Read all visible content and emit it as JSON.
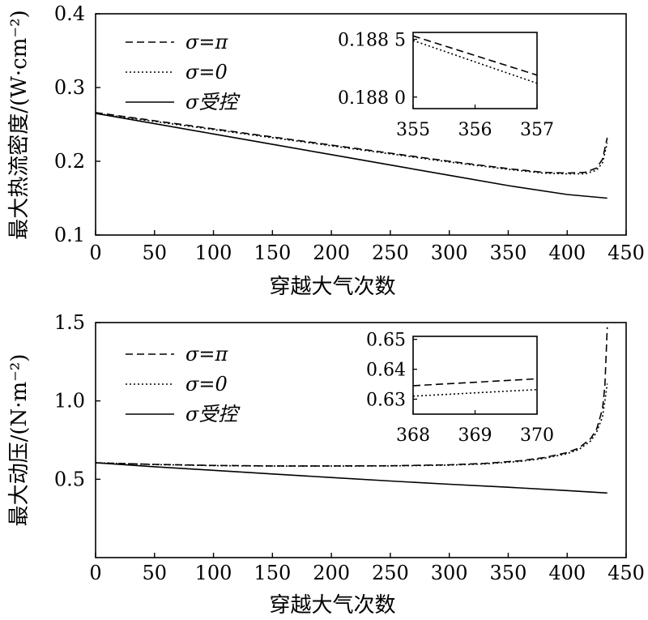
{
  "chart_data": [
    {
      "type": "line",
      "xlabel": "穿越大气次数",
      "ylabel": "最大热流密度/(W·cm⁻²)",
      "xlim": [
        0,
        450
      ],
      "ylim": [
        0.1,
        0.4
      ],
      "xticks": [
        "0",
        "50",
        "100",
        "150",
        "200",
        "250",
        "300",
        "350",
        "400",
        "450"
      ],
      "yticks": [
        "0.1",
        "0.2",
        "0.3",
        "0.4"
      ],
      "legend_position": "top-left",
      "series": [
        {
          "name": "σ=π",
          "style": "dashed",
          "x": [
            0,
            50,
            100,
            150,
            200,
            250,
            300,
            350,
            380,
            400,
            415,
            425,
            430,
            434
          ],
          "y": [
            0.266,
            0.255,
            0.244,
            0.233,
            0.222,
            0.211,
            0.2,
            0.19,
            0.185,
            0.184,
            0.185,
            0.191,
            0.203,
            0.232
          ]
        },
        {
          "name": "σ=0",
          "style": "dotted",
          "x": [
            0,
            50,
            100,
            150,
            200,
            250,
            300,
            350,
            380,
            400,
            415,
            425,
            430,
            434
          ],
          "y": [
            0.265,
            0.254,
            0.243,
            0.232,
            0.221,
            0.21,
            0.199,
            0.189,
            0.184,
            0.183,
            0.183,
            0.188,
            0.198,
            0.225
          ]
        },
        {
          "name": "σ受控",
          "style": "solid",
          "x": [
            0,
            50,
            100,
            150,
            200,
            250,
            300,
            350,
            400,
            434
          ],
          "y": [
            0.265,
            0.251,
            0.237,
            0.223,
            0.209,
            0.195,
            0.181,
            0.167,
            0.155,
            0.15
          ]
        }
      ],
      "inset": {
        "xlim": [
          355,
          357
        ],
        "ylim": [
          0.1879,
          0.18856
        ],
        "xticks": [
          355,
          356,
          357
        ],
        "xtick_labels": [
          "355",
          "356",
          "357"
        ],
        "yticks": [
          0.188,
          0.1885
        ],
        "ytick_labels": [
          "0.188 0",
          "0.188 5"
        ],
        "series": [
          {
            "style": "dashed",
            "x": [
              355,
              357
            ],
            "y": [
              0.18853,
              0.18819
            ]
          },
          {
            "style": "dotted",
            "x": [
              355,
              357
            ],
            "y": [
              0.18849,
              0.18812
            ]
          }
        ]
      }
    },
    {
      "type": "line",
      "xlabel": "穿越大气次数",
      "ylabel": "最大动压/(N·m⁻²)",
      "xlim": [
        0,
        450
      ],
      "ylim": [
        0.0,
        1.5
      ],
      "xticks": [
        "0",
        "50",
        "100",
        "150",
        "200",
        "250",
        "300",
        "350",
        "400",
        "450"
      ],
      "yticks": [
        "0.5",
        "1.0",
        "1.5"
      ],
      "legend_position": "top-left",
      "series": [
        {
          "name": "σ=π",
          "style": "dashed",
          "x": [
            0,
            50,
            100,
            150,
            200,
            250,
            300,
            330,
            360,
            380,
            400,
            410,
            420,
            425,
            430,
            432,
            434
          ],
          "y": [
            0.605,
            0.595,
            0.588,
            0.585,
            0.585,
            0.586,
            0.592,
            0.601,
            0.618,
            0.638,
            0.67,
            0.7,
            0.76,
            0.82,
            0.95,
            1.1,
            1.47
          ]
        },
        {
          "name": "σ=0",
          "style": "dotted",
          "x": [
            0,
            50,
            100,
            150,
            200,
            250,
            300,
            330,
            360,
            380,
            400,
            410,
            420,
            425,
            430,
            432,
            434
          ],
          "y": [
            0.605,
            0.594,
            0.587,
            0.584,
            0.584,
            0.585,
            0.59,
            0.598,
            0.614,
            0.632,
            0.663,
            0.69,
            0.745,
            0.8,
            0.9,
            1.0,
            1.11
          ]
        },
        {
          "name": "σ受控",
          "style": "solid",
          "x": [
            0,
            50,
            100,
            150,
            200,
            250,
            300,
            350,
            400,
            434
          ],
          "y": [
            0.605,
            0.58,
            0.557,
            0.534,
            0.511,
            0.489,
            0.468,
            0.449,
            0.428,
            0.412
          ]
        }
      ],
      "inset": {
        "xlim": [
          368,
          370
        ],
        "ylim": [
          0.625,
          0.651
        ],
        "xticks": [
          368,
          369,
          370
        ],
        "xtick_labels": [
          "368",
          "369",
          "370"
        ],
        "yticks": [
          0.63,
          0.64,
          0.65
        ],
        "ytick_labels": [
          "0.63",
          "0.64",
          "0.65"
        ],
        "series": [
          {
            "style": "dashed",
            "x": [
              368,
              370
            ],
            "y": [
              0.6345,
              0.6368
            ]
          },
          {
            "style": "dotted",
            "x": [
              368,
              370
            ],
            "y": [
              0.631,
              0.6332
            ]
          }
        ]
      }
    }
  ]
}
